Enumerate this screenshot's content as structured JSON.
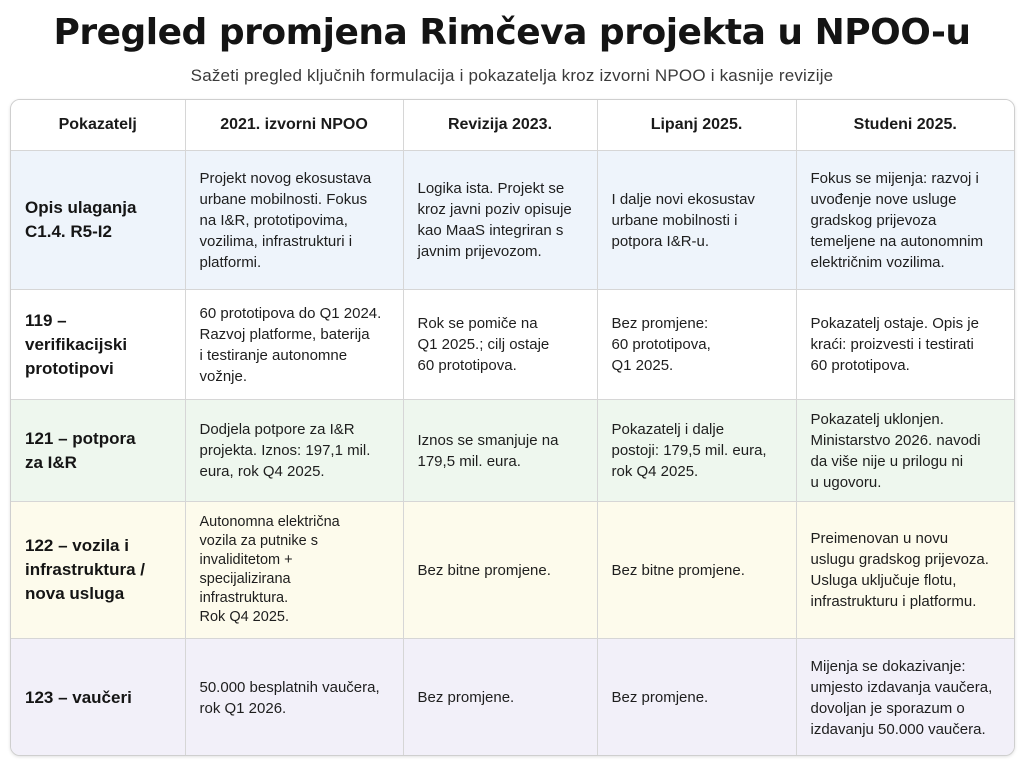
{
  "title": "Pregled promjena Rimčeva projekta u NPOO-u",
  "subtitle": "Sažeti pregled ključnih formulacija i pokazatelja kroz izvorni NPOO i kasnije revizije",
  "table": {
    "headers": [
      "Pokazatelj",
      "2021. izvorni NPOO",
      "Revizija 2023.",
      "Lipanj 2025.",
      "Studeni 2025."
    ],
    "row_colors": [
      "#eef4fb",
      "#ffffff",
      "#eef7ee",
      "#fdfbec",
      "#f2f0f9"
    ],
    "rows": [
      {
        "label": "Opis ulaganja\nC1.4. R5-I2",
        "cells": [
          "Projekt novog ekosustava\nurbane mobilnosti. Fokus\nna I&R, prototipovima,\nvozilima, infrastrukturi i\nplatformi.",
          "Logika ista. Projekt se\nkroz javni poziv opisuje\nkao MaaS integriran s\njavnim prijevozom.",
          "I dalje novi ekosustav\nurbane mobilnosti i\npotpora I&R-u.",
          "Fokus se mijenja: razvoj i\nuvođenje nove usluge\ngradskog prijevoza\ntemeljene na autonomnim\nelektričnim vozilima."
        ]
      },
      {
        "label": "119 – verifikacijski\nprototipovi",
        "cells": [
          "60 prototipova do Q1 2024.\nRazvoj platforme, baterija\ni testiranje autonomne\nvožnje.",
          "Rok se pomiče na\nQ1 2025.; cilj ostaje\n60 prototipova.",
          "Bez promjene:\n60 prototipova,\nQ1 2025.",
          "Pokazatelj ostaje. Opis je\nkraći: proizvesti i testirati\n60 prototipova."
        ]
      },
      {
        "label": "121 – potpora\nza I&R",
        "cells": [
          "Dodjela potpore za I&R\nprojekta. Iznos: 197,1 mil.\neura, rok Q4 2025.",
          "Iznos se smanjuje na\n179,5 mil. eura.",
          "Pokazatelj i dalje\npostoji: 179,5 mil. eura,\nrok Q4 2025.",
          "Pokazatelj uklonjen.\nMinistarstvo 2026. navodi\nda više nije u prilogu ni\nu ugovoru."
        ]
      },
      {
        "label": "122 – vozila i\ninfrastruktura /\nnova usluga",
        "cells": [
          "Autonomna električna\nvozila za putnike s\ninvaliditetom +\nspecijalizirana\ninfrastruktura.\nRok Q4 2025.",
          "Bez bitne promjene.",
          "Bez bitne promjene.",
          "Preimenovan u novu\nuslugu gradskog prijevoza.\nUsluga uključuje flotu,\ninfrastrukturu i platformu."
        ]
      },
      {
        "label": "123 – vaučeri",
        "cells": [
          "50.000 besplatnih vaučera,\nrok Q1 2026.",
          "Bez promjene.",
          "Bez promjene.",
          "Mijenja se dokazivanje:\numjesto izdavanja vaučera,\ndovoljan je sporazum o\nizdavanju 50.000 vaučera."
        ]
      }
    ]
  }
}
